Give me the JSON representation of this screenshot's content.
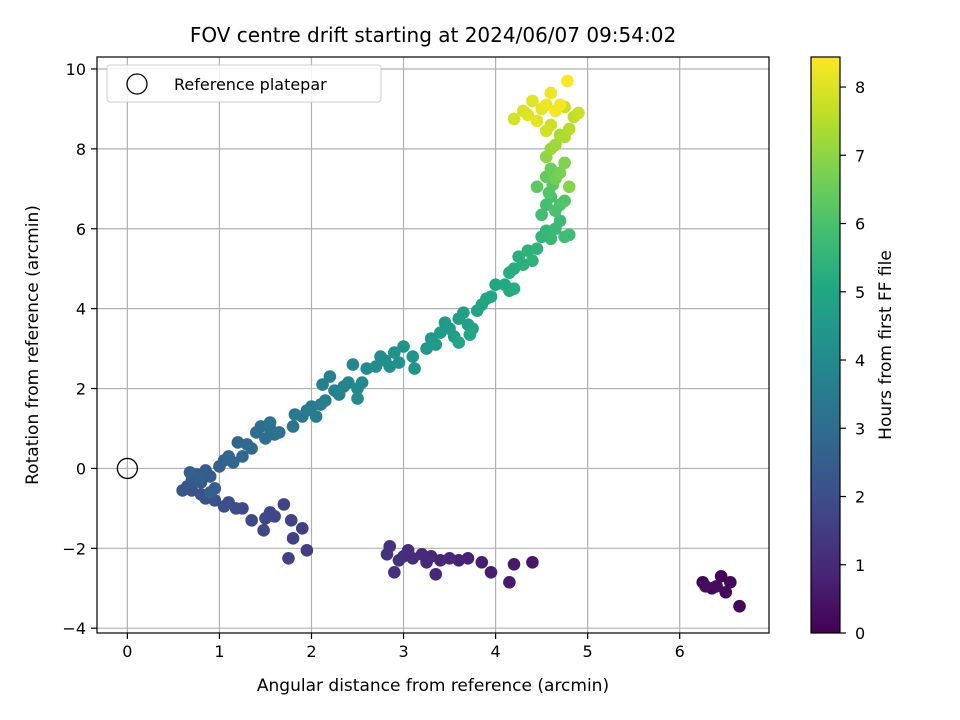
{
  "chart_data": {
    "type": "scatter",
    "title": "FOV centre drift starting at 2024/06/07 09:54:02",
    "xlabel": "Angular distance from reference (arcmin)",
    "ylabel": "Rotation from reference (arcmin)",
    "xlim": [
      -0.33,
      6.97
    ],
    "ylim": [
      -4.12,
      10.3
    ],
    "xticks": [
      0,
      1,
      2,
      3,
      4,
      5,
      6
    ],
    "yticks": [
      -4,
      -2,
      0,
      2,
      4,
      6,
      8,
      10
    ],
    "ytick_labels": [
      "−4",
      "−2",
      "0",
      "2",
      "4",
      "6",
      "8",
      "10"
    ],
    "grid": true,
    "legend": {
      "position": "top-left",
      "entries": [
        {
          "label": "Reference platepar",
          "marker": "open-circle"
        }
      ]
    },
    "reference_point": {
      "x": 0,
      "y": 0
    },
    "colorbar": {
      "label": "Hours from first FF file",
      "colormap": "viridis",
      "min": 0,
      "max": 8.44,
      "ticks": [
        0,
        1,
        2,
        3,
        4,
        5,
        6,
        7,
        8
      ]
    },
    "points": [
      {
        "x": 6.25,
        "y": -2.85,
        "t": 0.0
      },
      {
        "x": 6.35,
        "y": -3.0,
        "t": 0.05
      },
      {
        "x": 6.45,
        "y": -2.7,
        "t": 0.1
      },
      {
        "x": 6.55,
        "y": -2.85,
        "t": 0.12
      },
      {
        "x": 6.5,
        "y": -3.1,
        "t": 0.15
      },
      {
        "x": 6.65,
        "y": -3.45,
        "t": 0.2
      },
      {
        "x": 6.4,
        "y": -2.95,
        "t": 0.25
      },
      {
        "x": 6.28,
        "y": -2.95,
        "t": 0.3
      },
      {
        "x": 4.4,
        "y": -2.35,
        "t": 0.55
      },
      {
        "x": 4.2,
        "y": -2.4,
        "t": 0.6
      },
      {
        "x": 4.15,
        "y": -2.85,
        "t": 0.62
      },
      {
        "x": 3.95,
        "y": -2.6,
        "t": 0.68
      },
      {
        "x": 3.85,
        "y": -2.35,
        "t": 0.72
      },
      {
        "x": 3.7,
        "y": -2.25,
        "t": 0.78
      },
      {
        "x": 3.6,
        "y": -2.3,
        "t": 0.82
      },
      {
        "x": 3.5,
        "y": -2.25,
        "t": 0.86
      },
      {
        "x": 3.4,
        "y": -2.3,
        "t": 0.9
      },
      {
        "x": 3.35,
        "y": -2.65,
        "t": 0.93
      },
      {
        "x": 3.3,
        "y": -2.2,
        "t": 0.96
      },
      {
        "x": 3.25,
        "y": -2.35,
        "t": 1.0
      },
      {
        "x": 3.2,
        "y": -2.15,
        "t": 1.03
      },
      {
        "x": 3.1,
        "y": -2.25,
        "t": 1.06
      },
      {
        "x": 3.05,
        "y": -2.05,
        "t": 1.09
      },
      {
        "x": 3.0,
        "y": -2.2,
        "t": 1.12
      },
      {
        "x": 2.95,
        "y": -2.3,
        "t": 1.15
      },
      {
        "x": 2.9,
        "y": -2.6,
        "t": 1.18
      },
      {
        "x": 2.85,
        "y": -1.95,
        "t": 1.2
      },
      {
        "x": 2.82,
        "y": -2.15,
        "t": 1.22
      },
      {
        "x": 1.95,
        "y": -2.05,
        "t": 1.5
      },
      {
        "x": 1.9,
        "y": -1.5,
        "t": 1.55
      },
      {
        "x": 1.8,
        "y": -1.75,
        "t": 1.6
      },
      {
        "x": 1.75,
        "y": -2.25,
        "t": 1.63
      },
      {
        "x": 1.78,
        "y": -1.3,
        "t": 1.66
      },
      {
        "x": 1.7,
        "y": -0.9,
        "t": 1.7
      },
      {
        "x": 1.6,
        "y": -1.2,
        "t": 1.74
      },
      {
        "x": 1.55,
        "y": -1.1,
        "t": 1.78
      },
      {
        "x": 1.5,
        "y": -1.25,
        "t": 1.82
      },
      {
        "x": 1.48,
        "y": -1.55,
        "t": 1.85
      },
      {
        "x": 1.35,
        "y": -1.3,
        "t": 1.88
      },
      {
        "x": 1.25,
        "y": -1.0,
        "t": 1.92
      },
      {
        "x": 1.18,
        "y": -1.0,
        "t": 1.96
      },
      {
        "x": 1.1,
        "y": -0.85,
        "t": 2.0
      },
      {
        "x": 1.05,
        "y": -0.95,
        "t": 2.03
      },
      {
        "x": 0.95,
        "y": -0.8,
        "t": 2.06
      },
      {
        "x": 0.85,
        "y": -0.75,
        "t": 2.1
      },
      {
        "x": 0.8,
        "y": -0.65,
        "t": 2.13
      },
      {
        "x": 0.7,
        "y": -0.55,
        "t": 2.16
      },
      {
        "x": 0.65,
        "y": -0.45,
        "t": 2.2
      },
      {
        "x": 0.6,
        "y": -0.55,
        "t": 2.24
      },
      {
        "x": 0.7,
        "y": -0.3,
        "t": 2.28
      },
      {
        "x": 0.75,
        "y": -0.15,
        "t": 2.32
      },
      {
        "x": 0.8,
        "y": -0.35,
        "t": 2.36
      },
      {
        "x": 0.85,
        "y": -0.05,
        "t": 2.4
      },
      {
        "x": 0.9,
        "y": -0.2,
        "t": 2.44
      },
      {
        "x": 0.95,
        "y": -0.5,
        "t": 2.48
      },
      {
        "x": 0.78,
        "y": -0.2,
        "t": 2.5
      },
      {
        "x": 0.68,
        "y": -0.1,
        "t": 2.52
      },
      {
        "x": 0.9,
        "y": -0.6,
        "t": 2.55
      },
      {
        "x": 1.0,
        "y": 0.05,
        "t": 2.6
      },
      {
        "x": 1.05,
        "y": 0.2,
        "t": 2.65
      },
      {
        "x": 1.1,
        "y": 0.3,
        "t": 2.7
      },
      {
        "x": 1.15,
        "y": 0.15,
        "t": 2.75
      },
      {
        "x": 1.2,
        "y": 0.65,
        "t": 2.8
      },
      {
        "x": 1.3,
        "y": 0.6,
        "t": 2.85
      },
      {
        "x": 1.25,
        "y": 0.3,
        "t": 2.88
      },
      {
        "x": 1.35,
        "y": 0.5,
        "t": 2.92
      },
      {
        "x": 1.4,
        "y": 0.9,
        "t": 2.96
      },
      {
        "x": 1.45,
        "y": 1.05,
        "t": 3.0
      },
      {
        "x": 1.5,
        "y": 0.75,
        "t": 3.04
      },
      {
        "x": 1.55,
        "y": 1.0,
        "t": 3.08
      },
      {
        "x": 1.6,
        "y": 0.85,
        "t": 3.12
      },
      {
        "x": 1.65,
        "y": 0.9,
        "t": 3.16
      },
      {
        "x": 1.55,
        "y": 1.15,
        "t": 3.2
      },
      {
        "x": 1.8,
        "y": 1.05,
        "t": 3.3
      },
      {
        "x": 1.82,
        "y": 1.35,
        "t": 3.34
      },
      {
        "x": 1.9,
        "y": 1.3,
        "t": 3.38
      },
      {
        "x": 1.95,
        "y": 1.45,
        "t": 3.42
      },
      {
        "x": 2.0,
        "y": 1.55,
        "t": 3.46
      },
      {
        "x": 2.05,
        "y": 1.3,
        "t": 3.5
      },
      {
        "x": 2.1,
        "y": 1.6,
        "t": 3.54
      },
      {
        "x": 2.15,
        "y": 1.7,
        "t": 3.58
      },
      {
        "x": 2.12,
        "y": 2.1,
        "t": 3.62
      },
      {
        "x": 2.2,
        "y": 2.3,
        "t": 3.66
      },
      {
        "x": 2.25,
        "y": 1.95,
        "t": 3.7
      },
      {
        "x": 2.3,
        "y": 1.85,
        "t": 3.74
      },
      {
        "x": 2.35,
        "y": 2.05,
        "t": 3.78
      },
      {
        "x": 2.4,
        "y": 2.15,
        "t": 3.82
      },
      {
        "x": 2.45,
        "y": 2.6,
        "t": 3.86
      },
      {
        "x": 2.5,
        "y": 2.0,
        "t": 3.9
      },
      {
        "x": 2.55,
        "y": 2.15,
        "t": 3.94
      },
      {
        "x": 2.6,
        "y": 2.5,
        "t": 3.98
      },
      {
        "x": 2.5,
        "y": 1.75,
        "t": 4.0
      },
      {
        "x": 2.7,
        "y": 2.55,
        "t": 4.05
      },
      {
        "x": 2.75,
        "y": 2.8,
        "t": 4.1
      },
      {
        "x": 2.8,
        "y": 2.7,
        "t": 4.14
      },
      {
        "x": 2.85,
        "y": 2.55,
        "t": 4.18
      },
      {
        "x": 2.9,
        "y": 2.9,
        "t": 4.22
      },
      {
        "x": 2.95,
        "y": 2.65,
        "t": 4.26
      },
      {
        "x": 3.0,
        "y": 3.05,
        "t": 4.3
      },
      {
        "x": 3.1,
        "y": 2.8,
        "t": 4.34
      },
      {
        "x": 3.12,
        "y": 2.5,
        "t": 4.38
      },
      {
        "x": 3.25,
        "y": 3.0,
        "t": 4.42
      },
      {
        "x": 3.3,
        "y": 3.25,
        "t": 4.46
      },
      {
        "x": 3.35,
        "y": 3.1,
        "t": 4.5
      },
      {
        "x": 3.4,
        "y": 3.4,
        "t": 4.54
      },
      {
        "x": 3.45,
        "y": 3.65,
        "t": 4.58
      },
      {
        "x": 3.5,
        "y": 3.5,
        "t": 4.62
      },
      {
        "x": 3.55,
        "y": 3.3,
        "t": 4.66
      },
      {
        "x": 3.6,
        "y": 3.75,
        "t": 4.7
      },
      {
        "x": 3.65,
        "y": 3.9,
        "t": 4.74
      },
      {
        "x": 3.7,
        "y": 3.6,
        "t": 4.78
      },
      {
        "x": 3.75,
        "y": 3.5,
        "t": 4.82
      },
      {
        "x": 3.8,
        "y": 3.95,
        "t": 4.86
      },
      {
        "x": 3.85,
        "y": 4.1,
        "t": 4.9
      },
      {
        "x": 3.9,
        "y": 4.25,
        "t": 4.94
      },
      {
        "x": 3.6,
        "y": 3.15,
        "t": 4.96
      },
      {
        "x": 3.72,
        "y": 3.35,
        "t": 4.98
      },
      {
        "x": 3.95,
        "y": 4.3,
        "t": 5.0
      },
      {
        "x": 4.0,
        "y": 4.6,
        "t": 5.04
      },
      {
        "x": 4.1,
        "y": 4.6,
        "t": 5.08
      },
      {
        "x": 4.15,
        "y": 4.45,
        "t": 5.12
      },
      {
        "x": 4.2,
        "y": 4.5,
        "t": 5.16
      },
      {
        "x": 4.15,
        "y": 4.9,
        "t": 5.2
      },
      {
        "x": 4.2,
        "y": 5.0,
        "t": 5.24
      },
      {
        "x": 4.25,
        "y": 5.3,
        "t": 5.28
      },
      {
        "x": 4.3,
        "y": 5.1,
        "t": 5.32
      },
      {
        "x": 4.35,
        "y": 5.45,
        "t": 5.36
      },
      {
        "x": 4.4,
        "y": 5.2,
        "t": 5.4
      },
      {
        "x": 4.45,
        "y": 5.5,
        "t": 5.44
      },
      {
        "x": 4.5,
        "y": 5.8,
        "t": 5.5
      },
      {
        "x": 4.55,
        "y": 5.95,
        "t": 5.55
      },
      {
        "x": 4.6,
        "y": 5.75,
        "t": 5.6
      },
      {
        "x": 4.65,
        "y": 6.0,
        "t": 5.65
      },
      {
        "x": 4.7,
        "y": 6.2,
        "t": 5.7
      },
      {
        "x": 4.75,
        "y": 5.8,
        "t": 5.75
      },
      {
        "x": 4.8,
        "y": 5.85,
        "t": 5.8
      },
      {
        "x": 4.5,
        "y": 6.35,
        "t": 5.85
      },
      {
        "x": 4.55,
        "y": 6.6,
        "t": 5.9
      },
      {
        "x": 4.6,
        "y": 6.8,
        "t": 5.95
      },
      {
        "x": 4.65,
        "y": 6.45,
        "t": 6.0
      },
      {
        "x": 4.7,
        "y": 6.6,
        "t": 6.05
      },
      {
        "x": 4.75,
        "y": 6.7,
        "t": 6.1
      },
      {
        "x": 4.58,
        "y": 6.9,
        "t": 6.15
      },
      {
        "x": 4.62,
        "y": 7.1,
        "t": 6.25
      },
      {
        "x": 4.45,
        "y": 7.05,
        "t": 6.3
      },
      {
        "x": 4.55,
        "y": 7.3,
        "t": 6.4
      },
      {
        "x": 4.6,
        "y": 7.5,
        "t": 6.5
      },
      {
        "x": 4.65,
        "y": 7.25,
        "t": 6.6
      },
      {
        "x": 4.7,
        "y": 7.4,
        "t": 6.7
      },
      {
        "x": 4.75,
        "y": 7.65,
        "t": 6.8
      },
      {
        "x": 4.8,
        "y": 7.05,
        "t": 6.9
      },
      {
        "x": 4.55,
        "y": 7.8,
        "t": 7.0
      },
      {
        "x": 4.6,
        "y": 8.0,
        "t": 7.1
      },
      {
        "x": 4.65,
        "y": 8.1,
        "t": 7.2
      },
      {
        "x": 4.7,
        "y": 8.35,
        "t": 7.3
      },
      {
        "x": 4.75,
        "y": 8.3,
        "t": 7.4
      },
      {
        "x": 4.8,
        "y": 8.5,
        "t": 7.5
      },
      {
        "x": 4.85,
        "y": 8.8,
        "t": 7.6
      },
      {
        "x": 4.9,
        "y": 8.9,
        "t": 7.7
      },
      {
        "x": 4.75,
        "y": 9.05,
        "t": 7.75
      },
      {
        "x": 4.6,
        "y": 8.6,
        "t": 7.8
      },
      {
        "x": 4.55,
        "y": 8.45,
        "t": 7.85
      },
      {
        "x": 4.2,
        "y": 8.75,
        "t": 7.9
      },
      {
        "x": 4.3,
        "y": 8.95,
        "t": 7.95
      },
      {
        "x": 4.35,
        "y": 8.85,
        "t": 8.0
      },
      {
        "x": 4.4,
        "y": 9.2,
        "t": 8.05
      },
      {
        "x": 4.45,
        "y": 8.7,
        "t": 8.1
      },
      {
        "x": 4.5,
        "y": 9.0,
        "t": 8.15
      },
      {
        "x": 4.55,
        "y": 9.1,
        "t": 8.2
      },
      {
        "x": 4.6,
        "y": 9.4,
        "t": 8.25
      },
      {
        "x": 4.65,
        "y": 8.95,
        "t": 8.3
      },
      {
        "x": 4.7,
        "y": 9.1,
        "t": 8.35
      },
      {
        "x": 4.78,
        "y": 9.7,
        "t": 8.4
      }
    ]
  }
}
